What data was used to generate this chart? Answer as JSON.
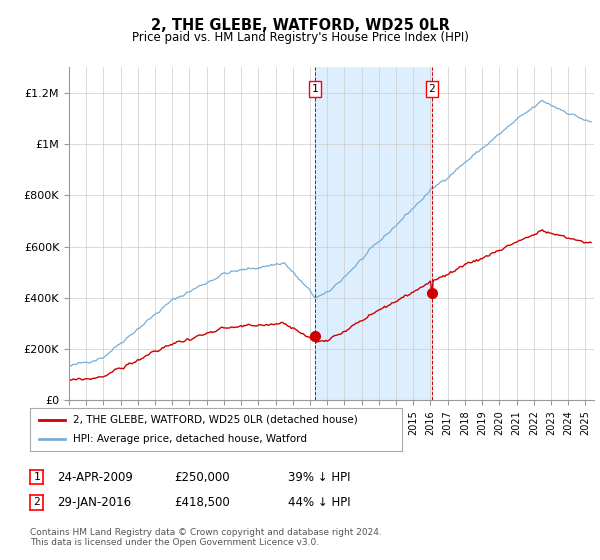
{
  "title": "2, THE GLEBE, WATFORD, WD25 0LR",
  "subtitle": "Price paid vs. HM Land Registry's House Price Index (HPI)",
  "hpi_color": "#7aadd4",
  "price_color": "#cc0000",
  "marker1_x": 2009.29,
  "marker2_x": 2016.08,
  "marker1_price": 250000,
  "marker2_price": 418500,
  "ylim": [
    0,
    1300000
  ],
  "yticks": [
    0,
    200000,
    400000,
    600000,
    800000,
    1000000,
    1200000
  ],
  "ytick_labels": [
    "£0",
    "£200K",
    "£400K",
    "£600K",
    "£800K",
    "£1M",
    "£1.2M"
  ],
  "xmin": 1995,
  "xmax": 2025.5,
  "legend_line1": "2, THE GLEBE, WATFORD, WD25 0LR (detached house)",
  "legend_line2": "HPI: Average price, detached house, Watford",
  "table_row1": [
    "1",
    "24-APR-2009",
    "£250,000",
    "39% ↓ HPI"
  ],
  "table_row2": [
    "2",
    "29-JAN-2016",
    "£418,500",
    "44% ↓ HPI"
  ],
  "footnote": "Contains HM Land Registry data © Crown copyright and database right 2024.\nThis data is licensed under the Open Government Licence v3.0.",
  "background_color": "#ffffff",
  "shade_color": "#ddeeff"
}
